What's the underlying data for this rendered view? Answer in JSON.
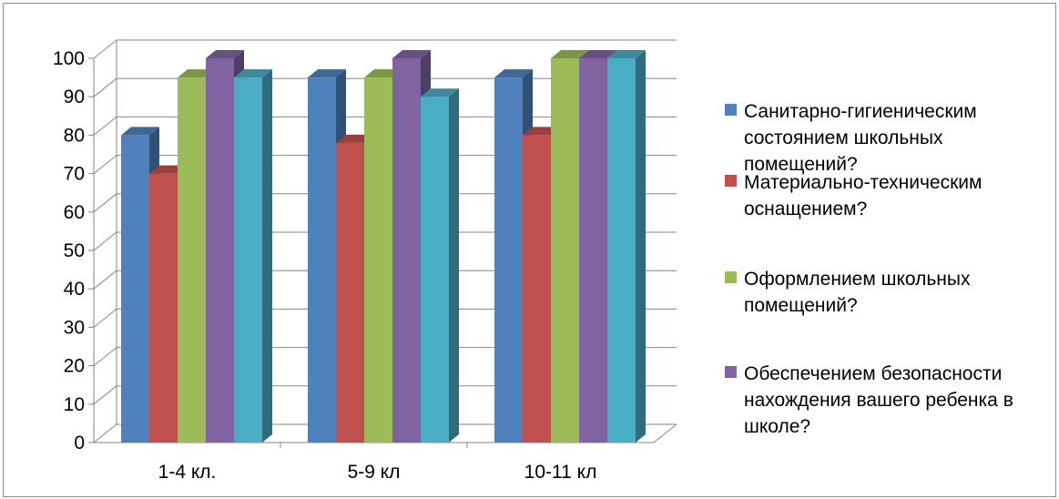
{
  "chart_data": {
    "type": "bar",
    "title": "",
    "xlabel": "",
    "ylabel": "",
    "ylim": [
      0,
      100
    ],
    "yticks": [
      0,
      10,
      20,
      30,
      40,
      50,
      60,
      70,
      80,
      90,
      100
    ],
    "categories": [
      "1-4 кл.",
      "5-9 кл",
      "10-11 кл"
    ],
    "series": [
      {
        "name": "Санитарно-гигиеническим состоянием школьных помещений?",
        "color": "#4f81bd",
        "values": [
          80,
          95,
          95
        ]
      },
      {
        "name": "Материально-техническим оснащением?",
        "color": "#c0504d",
        "values": [
          70,
          78,
          80
        ]
      },
      {
        "name": "Оформлением школьных помещений?",
        "color": "#9bbb59",
        "values": [
          95,
          95,
          100
        ]
      },
      {
        "name": "Обеспечением безопасности нахождения вашего ребенка в школе?",
        "color": "#8064a2",
        "values": [
          100,
          100,
          100
        ]
      },
      {
        "name": "",
        "color": "#4bacc6",
        "values": [
          95,
          90,
          100
        ]
      }
    ],
    "legend_position": "right",
    "grid": true,
    "style": "3d-clustered-column"
  }
}
